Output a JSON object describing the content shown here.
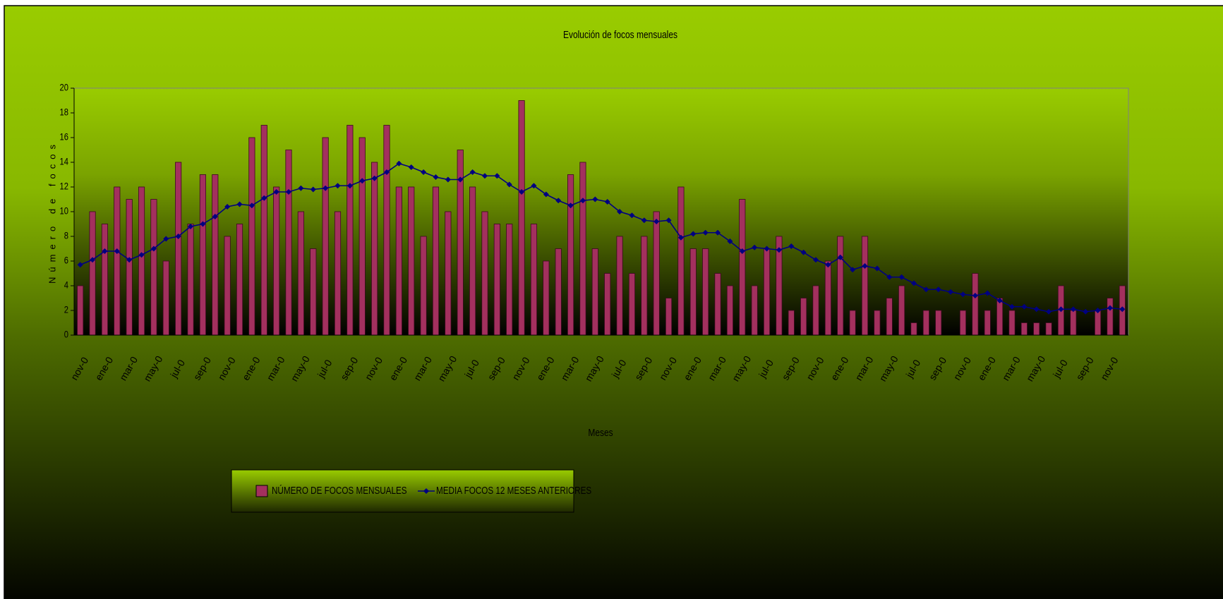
{
  "chart_data": {
    "type": "bar",
    "title": "Evolución de focos mensuales",
    "x_label": "Meses",
    "y_label": "Número de focos",
    "categories": [
      "nov-0",
      null,
      "ene-0",
      null,
      "mar-0",
      null,
      "may-0",
      null,
      "jul-0",
      null,
      "sep-0",
      null,
      "nov-0",
      null,
      "ene-0",
      null,
      "mar-0",
      null,
      "may-0",
      null,
      "jul-0",
      null,
      "sep-0",
      null,
      "nov-0",
      null,
      "ene-0",
      null,
      "mar-0",
      null,
      "may-0",
      null,
      "jul-0",
      null,
      "sep-0",
      null,
      "nov-0",
      null,
      "ene-0",
      null,
      "mar-0",
      null,
      "may-0",
      null,
      "jul-0",
      null,
      "sep-0",
      null,
      "nov-0",
      null,
      "ene-0",
      null,
      "mar-0",
      null,
      "may-0",
      null,
      "jul-0",
      null,
      "sep-0",
      null,
      "nov-0",
      null,
      "ene-0",
      null,
      "mar-0",
      null,
      "may-0",
      null,
      "jul-0",
      null,
      "sep-0",
      null,
      "nov-0",
      null,
      "ene-0",
      null,
      "mar-0",
      null,
      "may-0",
      null,
      "jul-0",
      null,
      "sep-0",
      null,
      "nov-0",
      null
    ],
    "series": [
      {
        "name": "NÚMERO DE FOCOS MENSUALES",
        "type": "bar",
        "color": "#a3305e",
        "values": [
          4,
          10,
          9,
          12,
          11,
          12,
          11,
          6,
          14,
          9,
          13,
          13,
          8,
          9,
          16,
          17,
          12,
          15,
          10,
          7,
          16,
          10,
          17,
          16,
          14,
          17,
          12,
          12,
          8,
          12,
          10,
          15,
          12,
          10,
          9,
          9,
          19,
          9,
          6,
          7,
          13,
          14,
          7,
          5,
          8,
          5,
          8,
          10,
          3,
          12,
          7,
          7,
          5,
          4,
          11,
          4,
          7,
          8,
          2,
          3,
          4,
          6,
          8,
          2,
          8,
          2,
          3,
          4,
          1,
          2,
          2,
          0,
          2,
          5,
          2,
          3,
          2,
          1,
          1,
          1,
          4,
          2,
          0,
          2,
          3,
          4
        ]
      },
      {
        "name": "MEDIA FOCOS 12 MESES ANTERIORES",
        "type": "line",
        "color": "#000080",
        "values": [
          5.7,
          6.1,
          6.8,
          6.8,
          6.1,
          6.5,
          7.0,
          7.8,
          8.0,
          8.8,
          9.0,
          9.6,
          10.4,
          10.6,
          10.5,
          11.1,
          11.6,
          11.6,
          11.9,
          11.8,
          11.9,
          12.1,
          12.1,
          12.5,
          12.7,
          13.2,
          13.9,
          13.6,
          13.2,
          12.8,
          12.6,
          12.6,
          13.2,
          12.9,
          12.9,
          12.2,
          11.6,
          12.1,
          11.4,
          10.9,
          10.5,
          10.9,
          11.0,
          10.8,
          10.0,
          9.7,
          9.3,
          9.2,
          9.3,
          7.9,
          8.2,
          8.3,
          8.3,
          7.6,
          6.8,
          7.1,
          7.0,
          6.9,
          7.2,
          6.7,
          6.1,
          5.7,
          6.3,
          5.3,
          5.6,
          5.4,
          4.7,
          4.7,
          4.2,
          3.7,
          3.7,
          3.5,
          3.3,
          3.2,
          3.4,
          2.8,
          2.3,
          2.3,
          2.1,
          1.9,
          2.1,
          2.1,
          1.9,
          2.0,
          2.2,
          2.1
        ]
      }
    ],
    "ylim": [
      0,
      20
    ],
    "yticks": [
      0,
      2,
      4,
      6,
      8,
      10,
      12,
      14,
      16,
      18,
      20
    ],
    "grid": false,
    "legend": "bottom-left"
  }
}
